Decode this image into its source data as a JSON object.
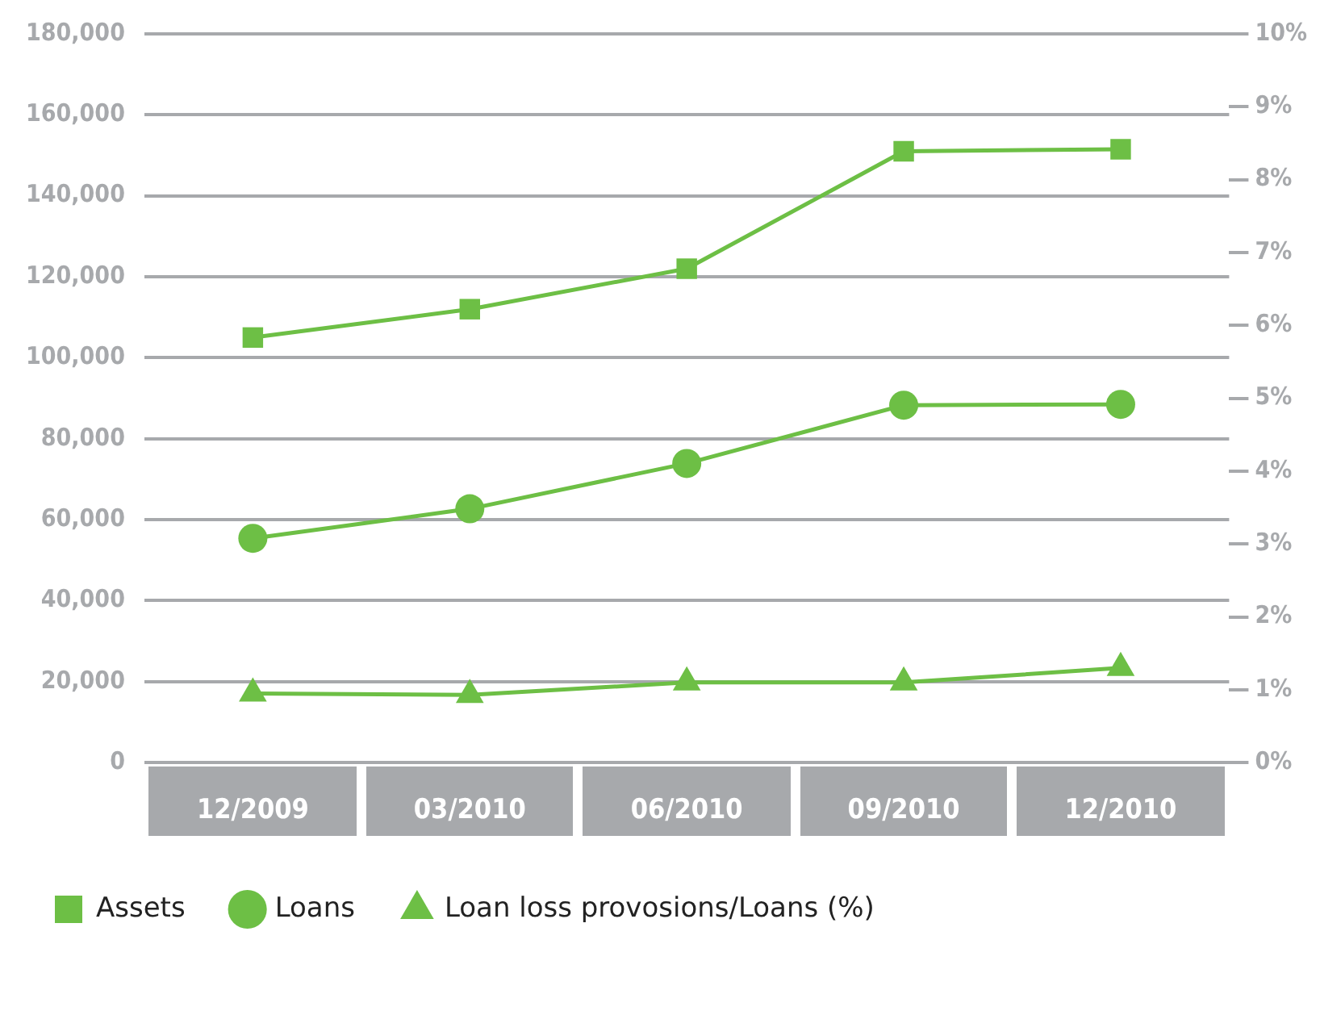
{
  "chart_data": {
    "type": "line",
    "categories": [
      "12/2009",
      "03/2010",
      "06/2010",
      "09/2010",
      "12/2010"
    ],
    "series": [
      {
        "name": "Assets",
        "color": "#6dbf45",
        "marker": "square",
        "values": [
          105000,
          112000,
          122000,
          151000,
          151500
        ]
      },
      {
        "name": "Loans",
        "color": "#6dbf45",
        "marker": "circle",
        "values": [
          55400,
          62700,
          73900,
          88300,
          88500
        ]
      },
      {
        "name": "Loan loss provosions/Loans (%)",
        "color": "#6dbf45",
        "marker": "triangle",
        "axis": "y2",
        "values": [
          0.95,
          0.93,
          1.1,
          1.1,
          1.3
        ]
      }
    ],
    "ylim": [
      0,
      180000
    ],
    "yticks": [
      0,
      {
        "value": 20000,
        "label": "20,000"
      },
      {
        "value": 40000,
        "label": "40,000"
      },
      {
        "value": 60000,
        "label": "60,000"
      },
      {
        "value": 80000,
        "label": "80,000"
      },
      {
        "value": 100000,
        "label": "100,000"
      },
      {
        "value": 120000,
        "label": "120,000"
      },
      {
        "value": 140000,
        "label": "140,000"
      },
      {
        "value": 160000,
        "label": "160,000"
      },
      {
        "value": 180000,
        "label": "180,000"
      }
    ],
    "y2lim": [
      0,
      10
    ],
    "y2ticks": [
      {
        "value": 0,
        "label": "0%"
      },
      {
        "value": 1,
        "label": "1%"
      },
      {
        "value": 2,
        "label": "2%"
      },
      {
        "value": 3,
        "label": "3%"
      },
      {
        "value": 4,
        "label": "4%"
      },
      {
        "value": 5,
        "label": "5%"
      },
      {
        "value": 6,
        "label": "6%"
      },
      {
        "value": 7,
        "label": "7%"
      },
      {
        "value": 8,
        "label": "8%"
      },
      {
        "value": 9,
        "label": "9%"
      },
      {
        "value": 10,
        "label": "10%"
      }
    ],
    "grid": "y",
    "legend": "bottom left",
    "line_style": "solid"
  }
}
